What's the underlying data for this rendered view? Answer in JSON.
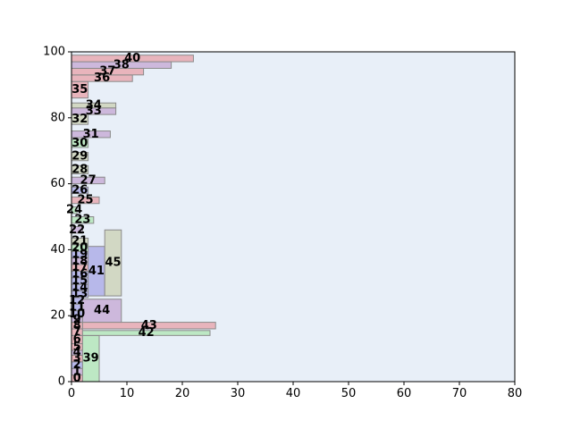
{
  "chart_data": {
    "type": "rectangle-packing",
    "title": "",
    "xlabel": "",
    "ylabel": "",
    "xlim": [
      0,
      80
    ],
    "ylim": [
      0,
      100
    ],
    "xticks": [
      0,
      10,
      20,
      30,
      40,
      50,
      60,
      70,
      80
    ],
    "yticks": [
      0,
      20,
      40,
      60,
      80,
      100
    ],
    "grid": false,
    "colors": {
      "plot_background": "#e8eff8",
      "red": "#e8b4bc",
      "purple": "#cdb8dc",
      "green": "#bde8c4",
      "olive": "#d2d8c4",
      "blue": "#b7b8ea",
      "edge": "#8a8a8a"
    },
    "rectangles": [
      {
        "label": "0",
        "x": 0,
        "y": 0,
        "w": 2,
        "h": 2,
        "color": "red"
      },
      {
        "label": "1",
        "x": 0,
        "y": 2,
        "w": 2,
        "h": 2,
        "color": "purple"
      },
      {
        "label": "2",
        "x": 0,
        "y": 4,
        "w": 2,
        "h": 2,
        "color": "blue"
      },
      {
        "label": "3",
        "x": 0,
        "y": 6,
        "w": 2,
        "h": 2,
        "color": "red"
      },
      {
        "label": "4",
        "x": 0,
        "y": 8,
        "w": 2,
        "h": 1.5,
        "color": "purple"
      },
      {
        "label": "5",
        "x": 0,
        "y": 9.5,
        "w": 2,
        "h": 2,
        "color": "red"
      },
      {
        "label": "6",
        "x": 0,
        "y": 11.5,
        "w": 2,
        "h": 2.5,
        "color": "red"
      },
      {
        "label": "7",
        "x": 0,
        "y": 14,
        "w": 2,
        "h": 2,
        "color": "red"
      },
      {
        "label": "8",
        "x": 0,
        "y": 16,
        "w": 2,
        "h": 2,
        "color": "red"
      },
      {
        "label": "9",
        "x": 0,
        "y": 18,
        "w": 2,
        "h": 1.5,
        "color": "purple"
      },
      {
        "label": "10",
        "x": 0,
        "y": 19.5,
        "w": 2,
        "h": 2,
        "color": "blue"
      },
      {
        "label": "11",
        "x": 0,
        "y": 21.5,
        "w": 2,
        "h": 2,
        "color": "blue"
      },
      {
        "label": "12",
        "x": 0,
        "y": 23.5,
        "w": 2,
        "h": 2,
        "color": "blue"
      },
      {
        "label": "13",
        "x": 0,
        "y": 25.5,
        "w": 3,
        "h": 2,
        "color": "blue"
      },
      {
        "label": "14",
        "x": 0,
        "y": 27.5,
        "w": 3,
        "h": 2,
        "color": "blue"
      },
      {
        "label": "15",
        "x": 0,
        "y": 29.5,
        "w": 3,
        "h": 2,
        "color": "blue"
      },
      {
        "label": "16",
        "x": 0,
        "y": 31.5,
        "w": 3,
        "h": 2,
        "color": "blue"
      },
      {
        "label": "17",
        "x": 0,
        "y": 33.5,
        "w": 3,
        "h": 2,
        "color": "red"
      },
      {
        "label": "18",
        "x": 0,
        "y": 35.5,
        "w": 3,
        "h": 2,
        "color": "purple"
      },
      {
        "label": "19",
        "x": 0,
        "y": 37.5,
        "w": 3,
        "h": 2,
        "color": "blue"
      },
      {
        "label": "20",
        "x": 0,
        "y": 39.5,
        "w": 3,
        "h": 2,
        "color": "green"
      },
      {
        "label": "21",
        "x": 0,
        "y": 41.5,
        "w": 3,
        "h": 2,
        "color": "olive"
      },
      {
        "label": "22",
        "x": 0,
        "y": 45,
        "w": 2,
        "h": 2,
        "color": "purple"
      },
      {
        "label": "23",
        "x": 0,
        "y": 48,
        "w": 4,
        "h": 2,
        "color": "green"
      },
      {
        "label": "24",
        "x": 0,
        "y": 51,
        "w": 1,
        "h": 2,
        "color": "green"
      },
      {
        "label": "25",
        "x": 0,
        "y": 54,
        "w": 5,
        "h": 2,
        "color": "red"
      },
      {
        "label": "26",
        "x": 0,
        "y": 57,
        "w": 3,
        "h": 2,
        "color": "blue"
      },
      {
        "label": "27",
        "x": 0,
        "y": 60,
        "w": 6,
        "h": 2,
        "color": "purple"
      },
      {
        "label": "28",
        "x": 0,
        "y": 63,
        "w": 3,
        "h": 2.5,
        "color": "olive"
      },
      {
        "label": "29",
        "x": 0,
        "y": 67,
        "w": 3,
        "h": 2.5,
        "color": "olive"
      },
      {
        "label": "30",
        "x": 0,
        "y": 71,
        "w": 3,
        "h": 2.5,
        "color": "green"
      },
      {
        "label": "31",
        "x": 0,
        "y": 74,
        "w": 7,
        "h": 2,
        "color": "purple"
      },
      {
        "label": "32",
        "x": 0,
        "y": 78,
        "w": 3,
        "h": 3,
        "color": "olive"
      },
      {
        "label": "33",
        "x": 0,
        "y": 81,
        "w": 8,
        "h": 2,
        "color": "purple"
      },
      {
        "label": "34",
        "x": 0,
        "y": 83,
        "w": 8,
        "h": 1.5,
        "color": "olive"
      },
      {
        "label": "35",
        "x": 0,
        "y": 86,
        "w": 3,
        "h": 5,
        "color": "red"
      },
      {
        "label": "36",
        "x": 0,
        "y": 91,
        "w": 11,
        "h": 2,
        "color": "red"
      },
      {
        "label": "37",
        "x": 0,
        "y": 93,
        "w": 13,
        "h": 2,
        "color": "red"
      },
      {
        "label": "38",
        "x": 0,
        "y": 95,
        "w": 18,
        "h": 2,
        "color": "purple"
      },
      {
        "label": "39",
        "x": 2,
        "y": 0,
        "w": 3,
        "h": 14,
        "color": "green"
      },
      {
        "label": "40",
        "x": 0,
        "y": 97,
        "w": 22,
        "h": 2,
        "color": "red"
      },
      {
        "label": "41",
        "x": 3,
        "y": 26,
        "w": 3,
        "h": 15,
        "color": "blue"
      },
      {
        "label": "42",
        "x": 2,
        "y": 14,
        "w": 23,
        "h": 1.5,
        "color": "green"
      },
      {
        "label": "43",
        "x": 2,
        "y": 16,
        "w": 24,
        "h": 2,
        "color": "red"
      },
      {
        "label": "44",
        "x": 2,
        "y": 18,
        "w": 7,
        "h": 7,
        "color": "purple"
      },
      {
        "label": "45",
        "x": 6,
        "y": 26,
        "w": 3,
        "h": 20,
        "color": "olive"
      }
    ]
  }
}
